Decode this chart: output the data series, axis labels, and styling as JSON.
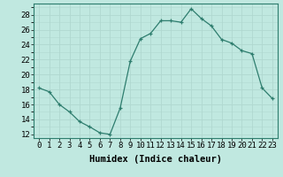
{
  "x": [
    0,
    1,
    2,
    3,
    4,
    5,
    6,
    7,
    8,
    9,
    10,
    11,
    12,
    13,
    14,
    15,
    16,
    17,
    18,
    19,
    20,
    21,
    22,
    23
  ],
  "y": [
    18.2,
    17.7,
    16.0,
    15.0,
    13.7,
    13.0,
    12.2,
    12.0,
    15.5,
    21.8,
    24.8,
    25.5,
    27.2,
    27.2,
    27.0,
    28.8,
    27.5,
    26.5,
    24.7,
    24.2,
    23.2,
    22.8,
    18.2,
    16.8
  ],
  "line_color": "#2e7d6e",
  "marker": "+",
  "bg_color": "#c0e8e0",
  "grid_color": "#b0d8d0",
  "xlabel": "Humidex (Indice chaleur)",
  "ylim": [
    11.5,
    29.5
  ],
  "yticks": [
    12,
    14,
    16,
    18,
    20,
    22,
    24,
    26,
    28
  ],
  "xticks": [
    0,
    1,
    2,
    3,
    4,
    5,
    6,
    7,
    8,
    9,
    10,
    11,
    12,
    13,
    14,
    15,
    16,
    17,
    18,
    19,
    20,
    21,
    22,
    23
  ],
  "xlabel_fontsize": 7.5,
  "tick_fontsize": 6.5,
  "axis_color": "#2e7d6e",
  "spine_color": "#2e7d6e"
}
